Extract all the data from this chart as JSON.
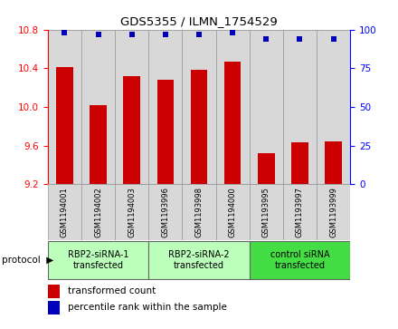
{
  "title": "GDS5355 / ILMN_1754529",
  "samples": [
    "GSM1194001",
    "GSM1194002",
    "GSM1194003",
    "GSM1193996",
    "GSM1193998",
    "GSM1194000",
    "GSM1193995",
    "GSM1193997",
    "GSM1193999"
  ],
  "bar_values": [
    10.41,
    10.02,
    10.32,
    10.28,
    10.38,
    10.47,
    9.52,
    9.63,
    9.64
  ],
  "percentile_values": [
    98,
    97,
    97,
    97,
    97,
    98,
    94,
    94,
    94
  ],
  "ylim_left": [
    9.2,
    10.8
  ],
  "ylim_right": [
    0,
    100
  ],
  "yticks_left": [
    9.2,
    9.6,
    10.0,
    10.4,
    10.8
  ],
  "yticks_right": [
    0,
    25,
    50,
    75,
    100
  ],
  "bar_color": "#cc0000",
  "dot_color": "#0000bb",
  "group_colors": [
    "#bbffbb",
    "#bbffbb",
    "#44dd44"
  ],
  "group_texts": [
    "RBP2-siRNA-1\ntransfected",
    "RBP2-siRNA-2\ntransfected",
    "control siRNA\ntransfected"
  ],
  "group_ranges": [
    [
      0,
      3
    ],
    [
      3,
      6
    ],
    [
      6,
      9
    ]
  ],
  "legend_bar_label": "transformed count",
  "legend_dot_label": "percentile rank within the sample",
  "sample_box_color": "#d8d8d8",
  "base_value": 9.2
}
